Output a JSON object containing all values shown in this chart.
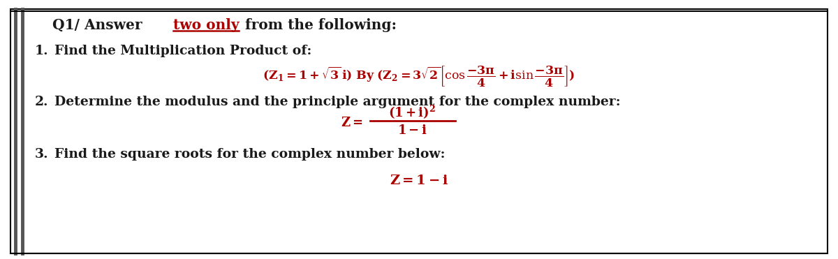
{
  "bg_color": "#ffffff",
  "border_color": "#000000",
  "text_color": "#1a1a1a",
  "red_color": "#aa0000",
  "title_black1": "Q1/ Answer ",
  "title_red": "two only",
  "title_black2": " from the following:",
  "item1_label": "1.",
  "item1_text": "Find the Multiplication Product of:",
  "item2_label": "2.",
  "item2_text": "Determine the modulus and the principle argument for the complex number:",
  "item3_label": "3.",
  "item3_text": "Find the square roots for the complex number below:",
  "formula1": "(Z_1 = 1 + \\sqrt{3}\\,i)\\ \\mathbf{By}\\ (Z_2 = 3\\sqrt{2}\\left[\\cos\\dfrac{-3\\pi}{4} + i\\sin\\dfrac{-3\\pi}{4}\\right])",
  "formula2_num": "(1 + i)^2",
  "formula2_den": "1 - i",
  "formula3": "Z = 1 - i",
  "figsize": [
    12.0,
    3.71
  ],
  "dpi": 100
}
